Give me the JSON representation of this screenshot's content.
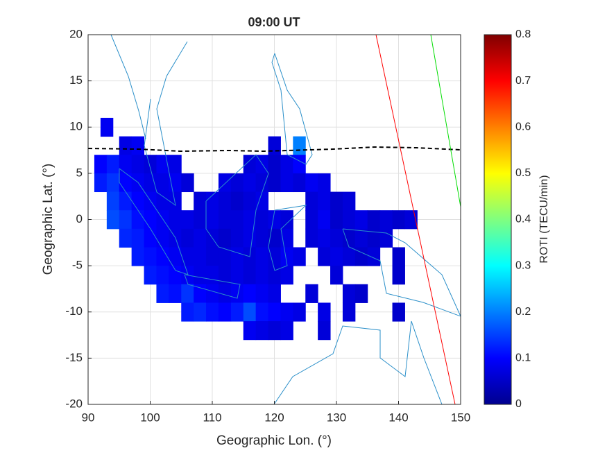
{
  "chart_data": {
    "type": "heatmap",
    "title": "09:00 UT",
    "x_label": "Geographic Lon. (°)",
    "y_label": "Geographic Lat. (°)",
    "colorbar_label": "ROTI (TECU/min)",
    "xlim": [
      90,
      150
    ],
    "ylim": [
      -20,
      20
    ],
    "xticks": [
      90,
      100,
      110,
      120,
      130,
      140,
      150
    ],
    "yticks": [
      -20,
      -15,
      -10,
      -5,
      0,
      5,
      10,
      15,
      20
    ],
    "clim": [
      0,
      0.8
    ],
    "cticks": [
      0,
      0.1,
      0.2,
      0.3,
      0.4,
      0.5,
      0.6,
      0.7,
      0.8
    ],
    "colormap": "jet",
    "cell_size": 2,
    "grid": true,
    "rows": [
      {
        "lat": 10,
        "lons": [
          93
        ],
        "values": [
          0.09
        ]
      },
      {
        "lat": 8,
        "lons": [
          96,
          98,
          120,
          124
        ],
        "values": [
          0.08,
          0.09,
          0.07,
          0.2
        ]
      },
      {
        "lat": 6,
        "lons": [
          92,
          94,
          96,
          98,
          100,
          102,
          104,
          116,
          118,
          120,
          122,
          124
        ],
        "values": [
          0.1,
          0.12,
          0.09,
          0.08,
          0.07,
          0.09,
          0.08,
          0.07,
          0.08,
          0.06,
          0.08,
          0.1
        ]
      },
      {
        "lat": 4,
        "lons": [
          92,
          94,
          96,
          98,
          100,
          102,
          104,
          106,
          112,
          114,
          116,
          118,
          120,
          122,
          124,
          126,
          128
        ],
        "values": [
          0.12,
          0.14,
          0.1,
          0.09,
          0.08,
          0.08,
          0.09,
          0.07,
          0.08,
          0.07,
          0.08,
          0.07,
          0.06,
          0.08,
          0.07,
          0.09,
          0.08
        ]
      },
      {
        "lat": 2,
        "lons": [
          94,
          96,
          98,
          100,
          102,
          104,
          108,
          110,
          112,
          114,
          116,
          118,
          126,
          128,
          130,
          132
        ],
        "values": [
          0.15,
          0.12,
          0.1,
          0.09,
          0.08,
          0.08,
          0.07,
          0.08,
          0.07,
          0.06,
          0.07,
          0.08,
          0.07,
          0.08,
          0.06,
          0.07
        ]
      },
      {
        "lat": 0,
        "lons": [
          94,
          96,
          98,
          100,
          102,
          104,
          106,
          108,
          110,
          112,
          114,
          116,
          118,
          120,
          122,
          126,
          128,
          130,
          132,
          134,
          136,
          138,
          140,
          142
        ],
        "values": [
          0.16,
          0.14,
          0.11,
          0.1,
          0.09,
          0.08,
          0.08,
          0.07,
          0.08,
          0.07,
          0.07,
          0.08,
          0.07,
          0.08,
          0.07,
          0.07,
          0.09,
          0.06,
          0.07,
          0.08,
          0.06,
          0.07,
          0.06,
          0.07
        ]
      },
      {
        "lat": -2,
        "lons": [
          96,
          98,
          100,
          102,
          104,
          106,
          108,
          110,
          112,
          114,
          116,
          118,
          120,
          122,
          126,
          128,
          130,
          132,
          134,
          136,
          138
        ],
        "values": [
          0.13,
          0.12,
          0.1,
          0.09,
          0.08,
          0.07,
          0.08,
          0.07,
          0.06,
          0.07,
          0.08,
          0.07,
          0.06,
          0.08,
          0.07,
          0.08,
          0.07,
          0.06,
          0.07,
          0.06,
          0.07
        ]
      },
      {
        "lat": -4,
        "lons": [
          98,
          100,
          102,
          104,
          106,
          108,
          110,
          112,
          114,
          116,
          118,
          120,
          122,
          124,
          128,
          130,
          132,
          134,
          136,
          140
        ],
        "values": [
          0.12,
          0.11,
          0.1,
          0.09,
          0.08,
          0.08,
          0.07,
          0.07,
          0.08,
          0.07,
          0.08,
          0.07,
          0.09,
          0.08,
          0.07,
          0.08,
          0.07,
          0.06,
          0.07,
          0.06
        ]
      },
      {
        "lat": -6,
        "lons": [
          100,
          102,
          104,
          106,
          108,
          110,
          112,
          114,
          116,
          118,
          120,
          122,
          130,
          140
        ],
        "values": [
          0.12,
          0.11,
          0.1,
          0.09,
          0.08,
          0.08,
          0.07,
          0.08,
          0.07,
          0.08,
          0.07,
          0.08,
          0.07,
          0.06
        ]
      },
      {
        "lat": -8,
        "lons": [
          102,
          104,
          106,
          108,
          110,
          112,
          114,
          116,
          118,
          120,
          126,
          132,
          134
        ],
        "values": [
          0.12,
          0.11,
          0.14,
          0.1,
          0.09,
          0.08,
          0.09,
          0.1,
          0.09,
          0.08,
          0.07,
          0.07,
          0.06
        ]
      },
      {
        "lat": -10,
        "lons": [
          106,
          108,
          110,
          112,
          114,
          116,
          118,
          120,
          122,
          124,
          128,
          132,
          140
        ],
        "values": [
          0.12,
          0.13,
          0.11,
          0.1,
          0.12,
          0.16,
          0.11,
          0.1,
          0.09,
          0.08,
          0.08,
          0.07,
          0.06
        ]
      },
      {
        "lat": -12,
        "lons": [
          116,
          118,
          120,
          122,
          128
        ],
        "values": [
          0.09,
          0.08,
          0.07,
          0.08,
          0.07
        ]
      }
    ]
  }
}
